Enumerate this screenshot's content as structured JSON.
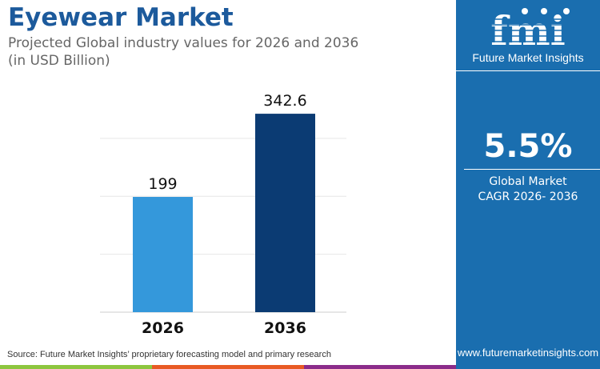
{
  "header": {
    "title": "Eyewear Market",
    "subtitle_line1": "Projected Global industry values for 2026 and 2036",
    "subtitle_line2": "(in USD Billion)"
  },
  "chart_data": {
    "type": "bar",
    "categories": [
      "2026",
      "2036"
    ],
    "values": [
      199,
      342.6
    ],
    "data_labels": [
      "199",
      "342.6"
    ],
    "colors": [
      "#3498db",
      "#0b3b73"
    ],
    "ylim": [
      0,
      400
    ],
    "gridlines": [
      100,
      200,
      300
    ],
    "grid": true,
    "title": "",
    "xlabel": "",
    "ylabel": ""
  },
  "footer": {
    "source": "Source: Future Market Insights’ proprietary forecasting model and primary research",
    "strip_colors": [
      "#8dc63f",
      "#e85a24",
      "#8b2c8a"
    ]
  },
  "panel": {
    "brand": "Future Market Insights",
    "logo_text": "fmi",
    "cagr_value": "5.5%",
    "cagr_label_line1": "Global Market",
    "cagr_label_line2": "CAGR 2026- 2036",
    "website": "www.futuremarketinsights.com",
    "background": "#1a6eaf"
  }
}
